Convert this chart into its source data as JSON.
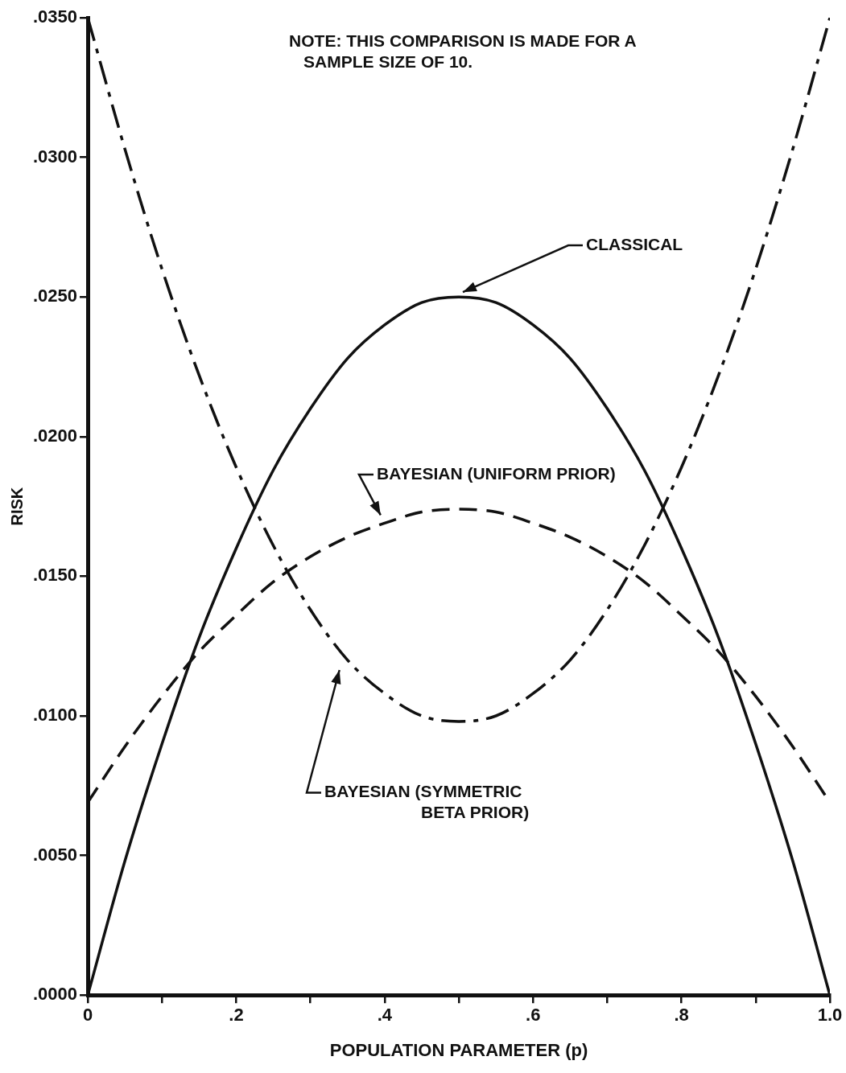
{
  "chart_data": {
    "type": "line",
    "xlabel": "POPULATION PARAMETER (p)",
    "ylabel": "RISK",
    "annotations": [
      "NOTE: THIS COMPARISON IS MADE FOR A SAMPLE SIZE OF 10."
    ],
    "x": [
      0,
      0.05,
      0.1,
      0.15,
      0.2,
      0.25,
      0.3,
      0.35,
      0.4,
      0.45,
      0.5,
      0.55,
      0.6,
      0.65,
      0.7,
      0.75,
      0.8,
      0.85,
      0.9,
      0.95,
      1.0
    ],
    "series": [
      {
        "name": "CLASSICAL",
        "color": "#111111",
        "line_style": "solid",
        "values": [
          0,
          0.0048,
          0.009,
          0.0128,
          0.016,
          0.0188,
          0.021,
          0.0228,
          0.024,
          0.0248,
          0.025,
          0.0248,
          0.024,
          0.0228,
          0.021,
          0.0188,
          0.016,
          0.0128,
          0.009,
          0.0048,
          0
        ]
      },
      {
        "name": "BAYESIAN (UNIFORM PRIOR)",
        "color": "#111111",
        "line_style": "dashed",
        "values": [
          0.0069,
          0.0089,
          0.0107,
          0.0123,
          0.0136,
          0.0148,
          0.0157,
          0.0164,
          0.0169,
          0.0173,
          0.0174,
          0.0173,
          0.0169,
          0.0164,
          0.0157,
          0.0148,
          0.0136,
          0.0123,
          0.0107,
          0.0089,
          0.0069
        ]
      },
      {
        "name": "BAYESIAN (SYMMETRIC BETA PRIOR)",
        "color": "#111111",
        "line_style": "dashed",
        "values": [
          0.035,
          0.0303,
          0.026,
          0.0222,
          0.0189,
          0.0161,
          0.0138,
          0.012,
          0.0108,
          0.01,
          0.0098,
          0.01,
          0.0108,
          0.012,
          0.0138,
          0.0161,
          0.0189,
          0.0222,
          0.026,
          0.0303,
          0.035
        ]
      }
    ],
    "xlim": [
      0,
      1.0
    ],
    "ylim": [
      0,
      0.035
    ],
    "xticks": [
      0,
      {
        "value": 0.1,
        "label": null
      },
      {
        "value": 0.2,
        "label": ".2"
      },
      {
        "value": 0.3,
        "label": null
      },
      {
        "value": 0.4,
        "label": ".4"
      },
      {
        "value": 0.5,
        "label": null
      },
      {
        "value": 0.6,
        "label": ".6"
      },
      {
        "value": 0.7,
        "label": null
      },
      {
        "value": 0.8,
        "label": ".8"
      },
      {
        "value": 0.9,
        "label": null
      },
      {
        "value": 1.0,
        "label": "1.0"
      }
    ],
    "yticks": [
      {
        "value": 0,
        "label": ".0000"
      },
      {
        "value": 0.005,
        "label": ".0050"
      },
      {
        "value": 0.01,
        "label": ".0100"
      },
      {
        "value": 0.015,
        "label": ".0150"
      },
      {
        "value": 0.02,
        "label": ".0200"
      },
      {
        "value": 0.025,
        "label": ".0250"
      },
      {
        "value": 0.03,
        "label": ".0300"
      },
      {
        "value": 0.035,
        "label": ".0350"
      }
    ],
    "grid": false,
    "legend": false,
    "marker": "none"
  }
}
